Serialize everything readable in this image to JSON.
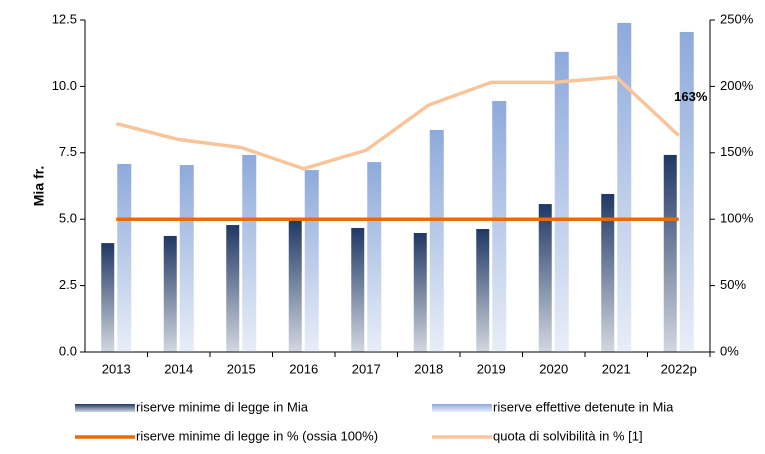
{
  "chart_data": {
    "type": "bar_line",
    "y_label": "Mia fr.",
    "categories": [
      "2013",
      "2014",
      "2015",
      "2016",
      "2017",
      "2018",
      "2019",
      "2020",
      "2021",
      "2022p"
    ],
    "ylim": [
      0,
      12.5
    ],
    "yticks": [
      {
        "value": 0,
        "label": "0.0"
      },
      {
        "value": 2.5,
        "label": "2.5"
      },
      {
        "value": 5,
        "label": "5.0"
      },
      {
        "value": 7.5,
        "label": "7.5"
      },
      {
        "value": 10,
        "label": "10.0"
      },
      {
        "value": 12.5,
        "label": "12.5"
      }
    ],
    "y2lim": [
      0,
      250
    ],
    "y2ticks": [
      {
        "value": 0,
        "label": "0%"
      },
      {
        "value": 50,
        "label": "50%"
      },
      {
        "value": 100,
        "label": "100%"
      },
      {
        "value": 150,
        "label": "150%"
      },
      {
        "value": 200,
        "label": "200%"
      },
      {
        "value": 250,
        "label": "250%"
      }
    ],
    "series": [
      {
        "name": "riserve minime di legge in Mia",
        "type": "bar",
        "color": "#1f3864",
        "values": [
          4.1,
          4.37,
          4.78,
          4.97,
          4.67,
          4.48,
          4.63,
          5.57,
          5.95,
          7.42
        ]
      },
      {
        "name": "riserve effettive detenute in Mia",
        "type": "bar",
        "color": "#8eaadb",
        "values": [
          7.08,
          7.04,
          7.42,
          6.85,
          7.15,
          8.36,
          9.45,
          11.3,
          12.39,
          12.05
        ]
      },
      {
        "name": "riserve minime di legge in % (ossia 100%)",
        "type": "line",
        "axis": "y2",
        "color": "#e46c0a",
        "values": [
          100,
          100,
          100,
          100,
          100,
          100,
          100,
          100,
          100,
          100
        ]
      },
      {
        "name": "quota di solvibilità in % [1]",
        "type": "line",
        "axis": "y2",
        "color": "#f8c59a",
        "values": [
          172,
          160,
          154,
          138,
          152,
          186,
          203,
          203,
          207,
          163
        ],
        "value_labels": [
          null,
          null,
          null,
          null,
          null,
          null,
          null,
          null,
          null,
          "163%"
        ]
      }
    ]
  }
}
